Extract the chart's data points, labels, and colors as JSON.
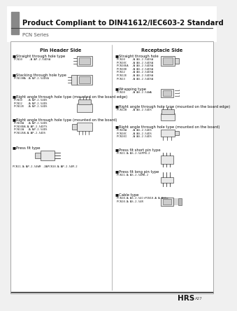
{
  "title": "Product Compliant to DIN41612/IEC603-2 Standard",
  "subtitle": "PCN Series",
  "bg_color": "#f5f5f5",
  "header_bar_color": "#888888",
  "header_line_color": "#333333",
  "footer_line_color": "#000000",
  "footer_brand": "HRS",
  "footer_page": "A27",
  "pin_header_title": "Pin Header Side",
  "receptacle_title": "Receptacle Side"
}
